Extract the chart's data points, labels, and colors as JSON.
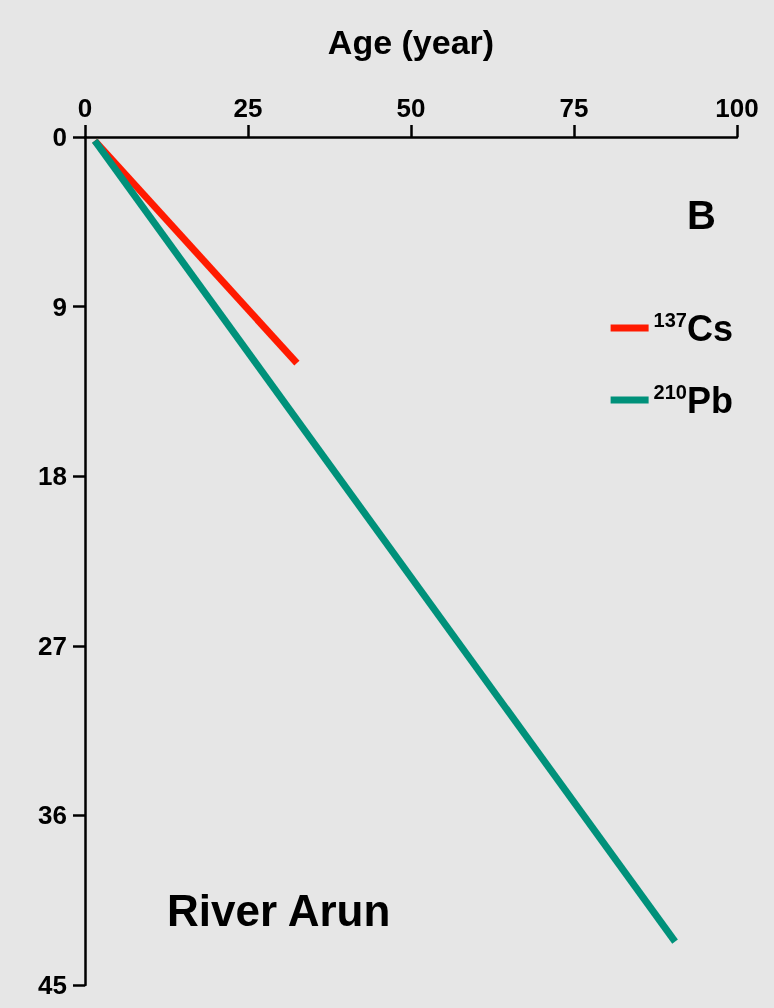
{
  "chart_data": {
    "type": "line",
    "xlabel": "Age (year)",
    "annotations": [
      "B",
      "River Arun"
    ],
    "xlim": [
      0,
      100
    ],
    "xticks": [
      0,
      25,
      50,
      75,
      100
    ],
    "ylim": [
      45,
      0
    ],
    "yticks": [
      0,
      9,
      18,
      27,
      36,
      45
    ],
    "series": [
      {
        "name": "$^{137}$Cs",
        "color": "#ff1a00",
        "x": [
          1.5,
          32.5
        ],
        "values": [
          0.2,
          12
        ]
      },
      {
        "name": "$^{210}$Pb",
        "color": "#00917a",
        "x": [
          1.5,
          90.5
        ],
        "values": [
          0.2,
          42.7
        ]
      }
    ],
    "legend": "top right",
    "grid": false,
    "marker": "none",
    "line_style": "solid"
  }
}
